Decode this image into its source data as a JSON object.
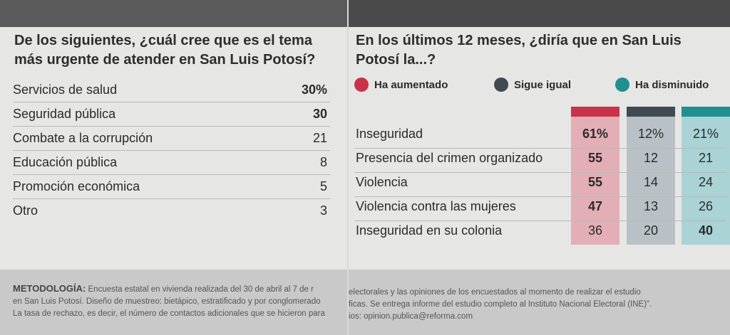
{
  "left": {
    "question": "De los siguientes, ¿cuál cree que es el tema más urgente de atender en San Luis Potosí?",
    "rows": [
      {
        "label": "Servicios de salud",
        "value": "30%",
        "bold": true
      },
      {
        "label": "Seguridad pública",
        "value": "30",
        "bold": true
      },
      {
        "label": "Combate a la corrupción",
        "value": "21",
        "bold": false
      },
      {
        "label": "Educación pública",
        "value": "8",
        "bold": false
      },
      {
        "label": "Promoción económica",
        "value": "5",
        "bold": false
      },
      {
        "label": "Otro",
        "value": "3",
        "bold": false
      }
    ],
    "footer_lead": "METODOLOGÍA:",
    "footer_line1": "Encuesta estatal en vivienda realizada del 30 de abril al 7 de r",
    "footer_line2": "en San Luis Potosí. Diseño de muestreo: bietápico, estratificado y por conglomerado",
    "footer_line3": "La tasa de rechazo, es decir, el número de contactos adicionales que se hicieron para"
  },
  "right": {
    "question": "En los últimos 12 meses, ¿diría que en San Luis Potosí la...?",
    "footer_line1": "electorales y las opiniones de los encuestados al momento de realizar el estudio",
    "footer_line2": "ficas. Se entrega informe del estudio completo al Instituto Nacional Electoral (INE)\".",
    "footer_line3": "ios: opinion.publica@reforma.com"
  },
  "chart_data": [
    {
      "type": "table",
      "title": "De los siguientes, ¿cuál cree que es el tema más urgente de atender en San Luis Potosí?",
      "categories": [
        "Servicios de salud",
        "Seguridad pública",
        "Combate a la corrupción",
        "Educación pública",
        "Promoción económica",
        "Otro"
      ],
      "values": [
        30,
        30,
        21,
        8,
        5,
        3
      ]
    },
    {
      "type": "table",
      "title": "En los últimos 12 meses, ¿diría que en San Luis Potosí la...?",
      "categories": [
        "Inseguridad",
        "Presencia del crimen organizado",
        "Violencia",
        "Violencia contra las mujeres",
        "Inseguridad en su colonia"
      ],
      "series": [
        {
          "name": "Ha aumentado",
          "color": "#c8334a",
          "values": [
            61,
            55,
            55,
            47,
            36
          ],
          "display": [
            "61%",
            "55",
            "55",
            "47",
            "36"
          ],
          "bold": [
            true,
            true,
            true,
            true,
            false
          ]
        },
        {
          "name": "Sigue igual",
          "color": "#3f4a52",
          "values": [
            12,
            12,
            14,
            13,
            20
          ],
          "display": [
            "12%",
            "12",
            "14",
            "13",
            "20"
          ],
          "bold": [
            false,
            false,
            false,
            false,
            false
          ]
        },
        {
          "name": "Ha disminuido",
          "color": "#1f8f8f",
          "values": [
            21,
            21,
            24,
            26,
            40
          ],
          "display": [
            "21%",
            "21",
            "24",
            "26",
            "40"
          ],
          "bold": [
            false,
            false,
            false,
            false,
            true
          ]
        }
      ],
      "legend": "top"
    }
  ]
}
